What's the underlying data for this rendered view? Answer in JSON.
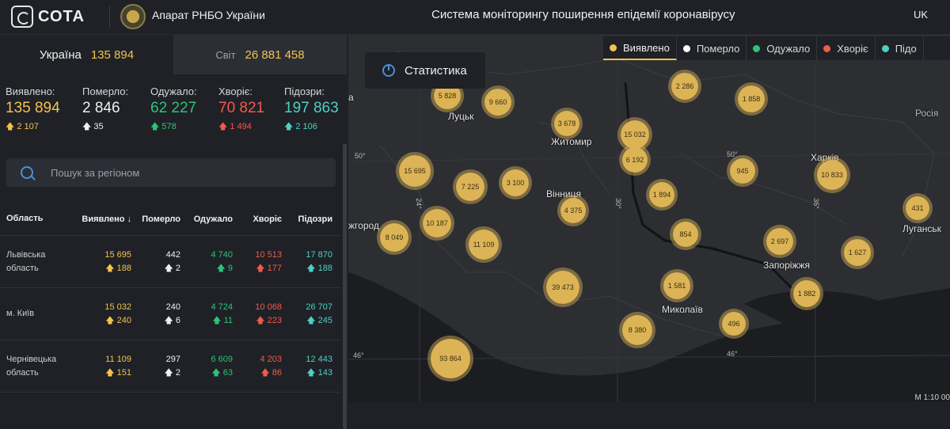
{
  "header": {
    "brand": "СОТА",
    "org": "Апарат РНБО України",
    "title": "Система моніторингу поширення епідемії коронавірусу",
    "lang": "UK"
  },
  "tabs": [
    {
      "label": "Україна",
      "value": "135 894"
    },
    {
      "label": "Світ",
      "value": "26 881 458"
    }
  ],
  "stats": [
    {
      "label": "Виявлено:",
      "value": "135 894",
      "delta": "2 107",
      "color": "#f4c34c"
    },
    {
      "label": "Померло:",
      "value": "2 846",
      "delta": "35",
      "color": "#f0f0f0"
    },
    {
      "label": "Одужало:",
      "value": "62 227",
      "delta": "578",
      "color": "#2dc37a"
    },
    {
      "label": "Хворіє:",
      "value": "70 821",
      "delta": "1 494",
      "color": "#f05a4e"
    },
    {
      "label": "Підозри:",
      "value": "197 863",
      "delta": "2 106",
      "color": "#4fd0c4"
    }
  ],
  "search": {
    "placeholder": "Пошук за регіоном"
  },
  "table": {
    "headers": [
      "Область",
      "Виявлено ↓",
      "Померло",
      "Одужало",
      "Хворіє",
      "Підозри"
    ],
    "rows": [
      {
        "region": "Львівська область",
        "detected": "15 695",
        "detected_d": "188",
        "died": "442",
        "died_d": "2",
        "recovered": "4 740",
        "recovered_d": "9",
        "ill": "10 513",
        "ill_d": "177",
        "suspected": "17 870",
        "suspected_d": "188"
      },
      {
        "region": "м. Київ",
        "detected": "15 032",
        "detected_d": "240",
        "died": "240",
        "died_d": "6",
        "recovered": "4 724",
        "recovered_d": "11",
        "ill": "10 068",
        "ill_d": "223",
        "suspected": "26 707",
        "suspected_d": "245"
      },
      {
        "region": "Чернівецька область",
        "detected": "11 109",
        "detected_d": "151",
        "died": "297",
        "died_d": "2",
        "recovered": "6 609",
        "recovered_d": "63",
        "ill": "4 203",
        "ill_d": "86",
        "suspected": "12 443",
        "suspected_d": "143"
      }
    ]
  },
  "map": {
    "stat_button": "Статистика",
    "legend": [
      {
        "label": "Виявлено",
        "color": "#f4c34c",
        "active": true
      },
      {
        "label": "Померло",
        "color": "#ffffff",
        "active": false
      },
      {
        "label": "Одужало",
        "color": "#2dc37a",
        "active": false
      },
      {
        "label": "Хворіє",
        "color": "#f05a4e",
        "active": false
      },
      {
        "label": "Підо",
        "color": "#4fd0c4",
        "active": false
      }
    ],
    "clusters": [
      "5 828",
      "9 660",
      "2 286",
      "1 858",
      "3 678",
      "15 032",
      "6 192",
      "15 695",
      "7 225",
      "3 100",
      "945",
      "10 833",
      "1 894",
      "10 187",
      "4 375",
      "431",
      "8 049",
      "11 109",
      "854",
      "2 697",
      "1 627",
      "39 473",
      "1 581",
      "1 882",
      "8 380",
      "496",
      "93 864"
    ],
    "cities": [
      "Луцьк",
      "Житомир",
      "Харків",
      "Вінниця",
      "Луганськ",
      "Запоріжжя",
      "Миколаїв",
      "Росія",
      "жгород",
      "а"
    ],
    "grid": [
      "50°",
      "24°",
      "30°",
      "36°",
      "50°",
      "46°",
      "46°"
    ],
    "scale": "M 1:10 00"
  }
}
